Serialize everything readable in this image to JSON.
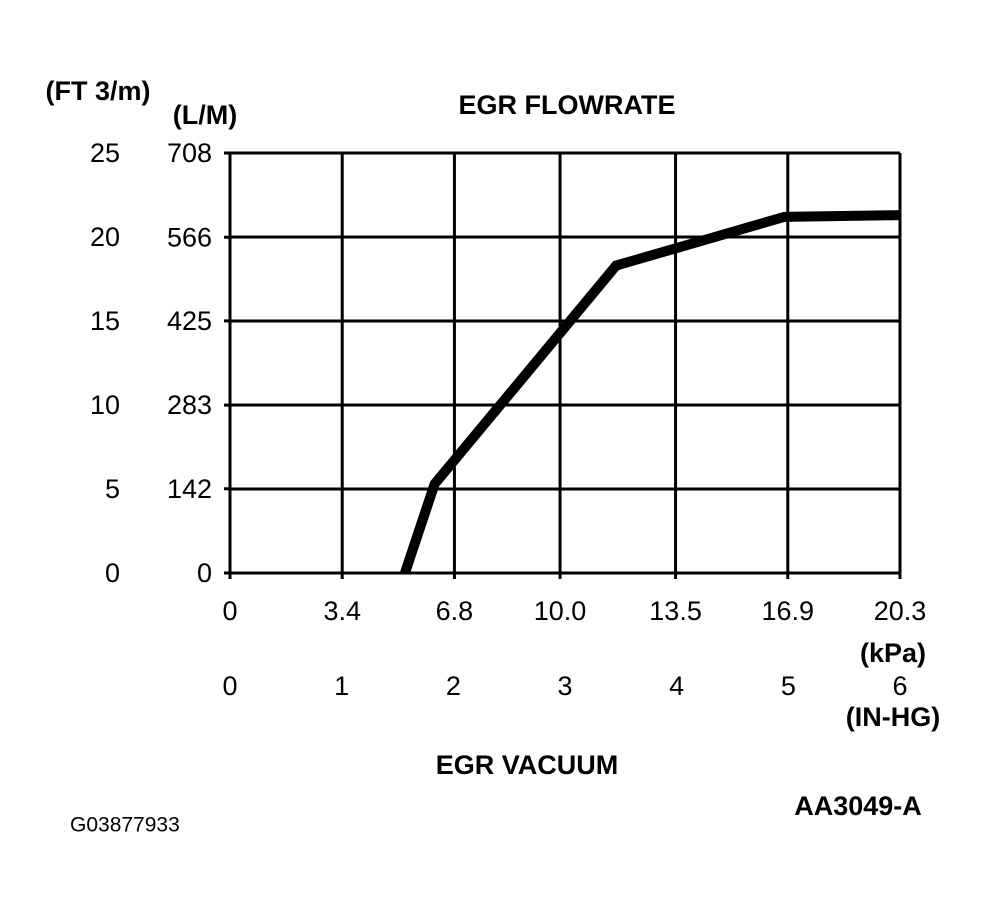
{
  "chart_data": {
    "type": "line",
    "title": "EGR FLOWRATE",
    "y_label": "(FT 3/m)",
    "y2_label": "(L/M)",
    "x_label": "EGR VACUUM",
    "x_unit": "(kPa)",
    "x2_unit": "(IN-HG)",
    "x": [
      5.3,
      6.2,
      11.7,
      16.8,
      20.3
    ],
    "values": [
      0,
      5.3,
      18.3,
      21.2,
      21.3
    ],
    "color": "#000000",
    "xlim": [
      0,
      20.3
    ],
    "xticks": [
      0,
      3.4,
      6.8,
      {
        "value": 10,
        "label": "10.0"
      },
      13.5,
      16.9,
      20.3
    ],
    "x2lim": [
      0,
      6
    ],
    "x2ticks": [
      0,
      1,
      2,
      3,
      4,
      5,
      6
    ],
    "ylim": [
      0,
      25
    ],
    "yticks": [
      0,
      5,
      10,
      15,
      20,
      25
    ],
    "y2lim": [
      0,
      708
    ],
    "y2ticks": [
      0,
      142,
      283,
      425,
      566,
      708
    ],
    "grid": true,
    "annotations": [
      "G03877933",
      "AA3049-A"
    ]
  }
}
